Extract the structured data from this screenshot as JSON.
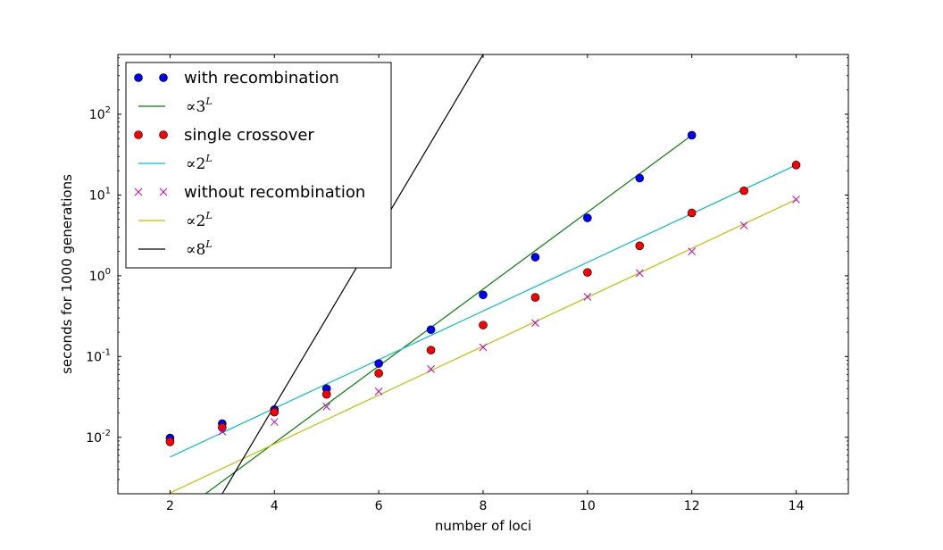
{
  "chart_data": {
    "type": "scatter",
    "xlabel": "number of loci",
    "ylabel": "seconds for 1000 generations",
    "xlim": [
      1,
      15
    ],
    "ylim": [
      0.002,
      550
    ],
    "yscale": "log",
    "grid": false,
    "legend_position": "top-left",
    "x_ticks": [
      2,
      4,
      6,
      8,
      10,
      12,
      14
    ],
    "y_ticks": [
      {
        "value": 0.01,
        "base": "10",
        "exp": "-2"
      },
      {
        "value": 0.1,
        "base": "10",
        "exp": "-1"
      },
      {
        "value": 1,
        "base": "10",
        "exp": "0"
      },
      {
        "value": 10,
        "base": "10",
        "exp": "1"
      },
      {
        "value": 100,
        "base": "10",
        "exp": "2"
      }
    ],
    "series": [
      {
        "name": "with recombination",
        "kind": "points",
        "marker": "circle",
        "color": "#0000ff",
        "x": [
          2,
          3,
          4,
          5,
          6,
          7,
          8,
          9,
          10,
          11,
          12
        ],
        "y": [
          0.0098,
          0.0148,
          0.022,
          0.04,
          0.082,
          0.215,
          0.58,
          1.7,
          5.2,
          16.2,
          55
        ]
      },
      {
        "name": "single crossover",
        "kind": "points",
        "marker": "circle",
        "color": "#ff0000",
        "x": [
          2,
          3,
          4,
          5,
          6,
          7,
          8,
          9,
          10,
          11,
          12,
          13,
          14
        ],
        "y": [
          0.0088,
          0.0132,
          0.0205,
          0.034,
          0.062,
          0.12,
          0.245,
          0.54,
          1.1,
          2.35,
          6.0,
          11.3,
          23.5
        ]
      },
      {
        "name": "without recombination",
        "kind": "points",
        "marker": "x",
        "color": "#bf00bf",
        "x": [
          3,
          4,
          5,
          6,
          7,
          8,
          9,
          10,
          11,
          12,
          13,
          14
        ],
        "y": [
          0.0118,
          0.0155,
          0.024,
          0.037,
          0.07,
          0.13,
          0.26,
          0.55,
          1.08,
          2.0,
          4.2,
          8.8
        ]
      },
      {
        "name_prefix": "∝",
        "name_base": "3",
        "name_exp": "L",
        "kind": "line",
        "color": "#008000",
        "x": [
          2,
          12
        ],
        "y": [
          0.00095,
          55
        ]
      },
      {
        "name_prefix": "∝",
        "name_base": "2",
        "name_exp": "L",
        "kind": "line",
        "color": "#00bfbf",
        "x": [
          2,
          14
        ],
        "y": [
          0.0057,
          23.5
        ]
      },
      {
        "name_prefix": "∝",
        "name_base": "2",
        "name_exp": "L",
        "kind": "line",
        "color": "#bfbf00",
        "x": [
          2,
          14
        ],
        "y": [
          0.00205,
          8.8
        ]
      },
      {
        "name_prefix": "∝",
        "name_base": "8",
        "name_exp": "L",
        "kind": "line",
        "color": "#000000",
        "x": [
          3,
          8
        ],
        "y": [
          0.002,
          550
        ]
      }
    ],
    "legend_order": [
      0,
      3,
      1,
      4,
      2,
      5,
      6
    ]
  }
}
